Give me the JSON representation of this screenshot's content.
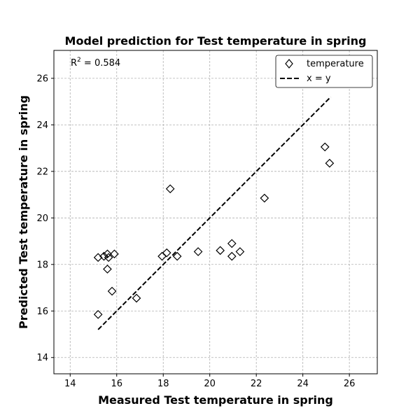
{
  "chart_data": {
    "type": "scatter",
    "title": "Model prediction for Test temperature in spring",
    "xlabel": "Measured Test temperature in spring",
    "ylabel": "Predicted Test temperature in spring",
    "xlim": [
      13.3,
      27.2
    ],
    "ylim": [
      13.3,
      27.2
    ],
    "xticks": [
      14,
      16,
      18,
      20,
      22,
      24,
      26
    ],
    "yticks": [
      14,
      16,
      18,
      20,
      22,
      24,
      26
    ],
    "grid": true,
    "legend_position": "top-right",
    "annotation_prefix": "R",
    "annotation_sup": "2",
    "annotation_suffix": " = 0.584",
    "series": [
      {
        "name": "temperature",
        "marker": "diamond",
        "color": "#000000",
        "x": [
          15.2,
          15.2,
          15.45,
          15.6,
          15.65,
          15.6,
          15.8,
          15.9,
          16.85,
          17.95,
          18.15,
          18.3,
          18.6,
          19.5,
          20.45,
          20.95,
          20.95,
          21.3,
          22.35,
          24.3,
          24.95,
          25.15
        ],
        "y": [
          18.3,
          15.85,
          18.35,
          18.45,
          18.3,
          17.8,
          16.85,
          18.45,
          16.55,
          18.35,
          18.5,
          21.25,
          18.35,
          18.55,
          18.6,
          18.9,
          18.35,
          18.55,
          20.85,
          26.15,
          23.05,
          22.35
        ]
      },
      {
        "name": "x = y",
        "line": "dashed",
        "color": "#000000",
        "x": [
          15.2,
          25.2
        ],
        "y": [
          15.2,
          25.2
        ]
      }
    ]
  }
}
